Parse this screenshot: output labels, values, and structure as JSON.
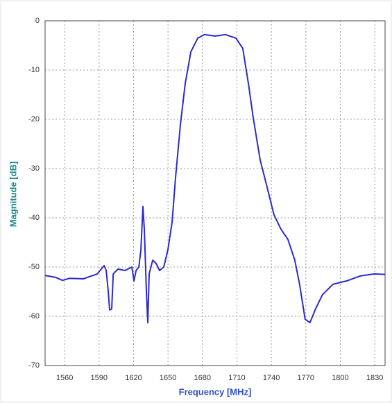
{
  "chart_data": {
    "type": "line",
    "xlabel": "Frequency [MHz]",
    "ylabel": "Magnitude [dB]",
    "xlim": [
      1543,
      1839
    ],
    "xticks": [
      1560,
      1590,
      1620,
      1650,
      1680,
      1710,
      1740,
      1770,
      1800,
      1830
    ],
    "ylim": [
      -70,
      0
    ],
    "yticks": [
      0,
      -10,
      -20,
      -30,
      -40,
      -50,
      -60,
      -70
    ],
    "grid": true,
    "series": [
      {
        "color": "#2a2ad0",
        "x": [
          1543.1,
          1552.2,
          1558.2,
          1564.2,
          1576.3,
          1588.4,
          1594.4,
          1596.2,
          1598.0,
          1599.2,
          1601.0,
          1602.3,
          1606.5,
          1612.5,
          1618.5,
          1620.4,
          1622.2,
          1624.6,
          1626.4,
          1628.2,
          1629.4,
          1631.2,
          1632.4,
          1633.6,
          1636.7,
          1639.7,
          1642.7,
          1646.3,
          1649.9,
          1653.6,
          1656.6,
          1660.8,
          1665.0,
          1669.9,
          1675.9,
          1681.9,
          1691.0,
          1700.0,
          1709.1,
          1715.1,
          1720.0,
          1724.2,
          1730.2,
          1736.3,
          1742.3,
          1748.3,
          1754.4,
          1760.4,
          1764.6,
          1769.4,
          1773.6,
          1778.5,
          1784.5,
          1793.6,
          1805.7,
          1817.7,
          1829.8,
          1838.8
        ],
        "values": [
          -51.7,
          -52.1,
          -52.7,
          -52.3,
          -52.4,
          -51.4,
          -49.7,
          -50.7,
          -54.9,
          -58.7,
          -58.5,
          -51.4,
          -50.4,
          -50.7,
          -50.0,
          -52.8,
          -50.7,
          -50.0,
          -46.5,
          -37.7,
          -42.3,
          -54.9,
          -61.3,
          -51.4,
          -48.6,
          -49.3,
          -50.7,
          -50.0,
          -46.5,
          -40.8,
          -31.7,
          -21.1,
          -12.7,
          -6.3,
          -3.5,
          -2.8,
          -3.1,
          -2.8,
          -3.5,
          -5.6,
          -12.7,
          -19.7,
          -28.2,
          -33.8,
          -39.4,
          -42.3,
          -44.4,
          -48.6,
          -53.5,
          -60.6,
          -61.3,
          -58.5,
          -55.6,
          -53.5,
          -52.8,
          -51.8,
          -51.4,
          -51.5
        ]
      }
    ]
  }
}
